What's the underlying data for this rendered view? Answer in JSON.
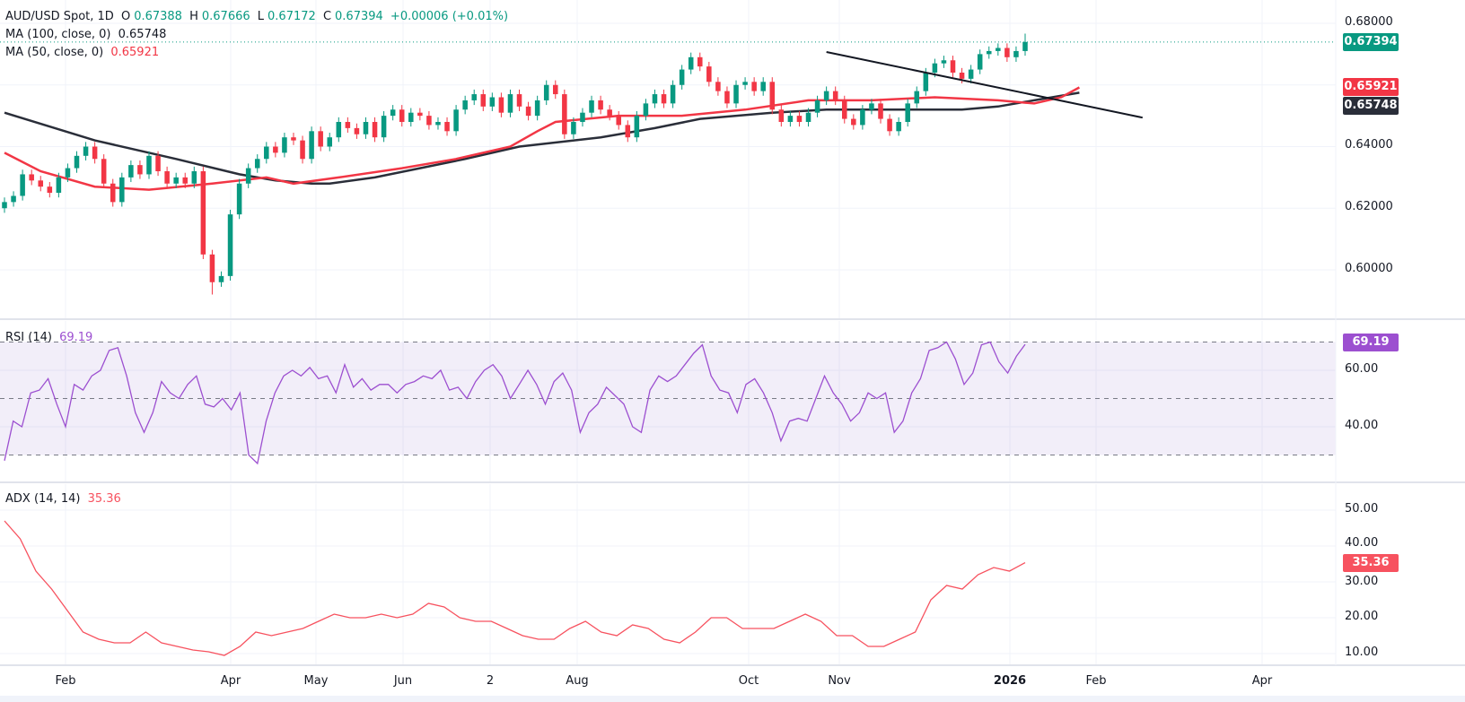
{
  "header": {
    "symbol": "AUD/USD Spot, 1D",
    "open_label": "O",
    "open": "0.67388",
    "high_label": "H",
    "high": "0.67666",
    "low_label": "L",
    "low": "0.67172",
    "close_label": "C",
    "close": "0.67394",
    "change": "+0.00006 (+0.01%)"
  },
  "indicators": {
    "ma100": {
      "label": "MA (100, close, 0)",
      "value": "0.65748",
      "color": "#2a2e39"
    },
    "ma50": {
      "label": "MA (50, close, 0)",
      "value": "0.65921",
      "color": "#f23645"
    },
    "rsi": {
      "label": "RSI (14)",
      "value": "69.19",
      "color": "#9c4fd0"
    },
    "adx": {
      "label": "ADX (14, 14)",
      "value": "35.36",
      "color": "#f7525f"
    }
  },
  "colors": {
    "up": "#089981",
    "down": "#f23645",
    "grid": "#f0f3fa",
    "rsi_band": "#7e57c2"
  },
  "price_axis": {
    "ticks": [
      "0.68000",
      "0.64000",
      "0.62000",
      "0.60000"
    ],
    "last_price": "0.67394"
  },
  "rsi_axis": {
    "ticks": [
      "60.00",
      "40.00"
    ],
    "bands": [
      70,
      50,
      30
    ]
  },
  "adx_axis": {
    "ticks": [
      "50.00",
      "40.00",
      "30.00",
      "20.00",
      "10.00"
    ]
  },
  "time_axis": {
    "labels": [
      "Feb",
      "Apr",
      "May",
      "Jun",
      "2",
      "Aug",
      "Oct",
      "Nov",
      "2026",
      "Feb",
      "Apr"
    ]
  },
  "chart_data": {
    "type": "candlestick",
    "title": "AUD/USD Spot, 1D",
    "ylim": [
      0.585,
      0.684
    ],
    "grid": true,
    "closes": [
      0.622,
      0.624,
      0.631,
      0.629,
      0.627,
      0.625,
      0.63,
      0.633,
      0.637,
      0.64,
      0.636,
      0.628,
      0.622,
      0.63,
      0.634,
      0.631,
      0.637,
      0.632,
      0.628,
      0.63,
      0.628,
      0.632,
      0.605,
      0.596,
      0.598,
      0.618,
      0.628,
      0.633,
      0.636,
      0.64,
      0.638,
      0.643,
      0.642,
      0.636,
      0.645,
      0.64,
      0.643,
      0.648,
      0.646,
      0.644,
      0.648,
      0.643,
      0.65,
      0.652,
      0.648,
      0.651,
      0.65,
      0.647,
      0.648,
      0.645,
      0.652,
      0.655,
      0.657,
      0.653,
      0.656,
      0.651,
      0.657,
      0.653,
      0.65,
      0.655,
      0.66,
      0.657,
      0.644,
      0.648,
      0.651,
      0.655,
      0.652,
      0.65,
      0.647,
      0.643,
      0.65,
      0.654,
      0.657,
      0.654,
      0.66,
      0.665,
      0.669,
      0.666,
      0.661,
      0.658,
      0.654,
      0.66,
      0.661,
      0.658,
      0.661,
      0.652,
      0.648,
      0.65,
      0.648,
      0.651,
      0.655,
      0.658,
      0.655,
      0.649,
      0.647,
      0.652,
      0.654,
      0.649,
      0.645,
      0.648,
      0.654,
      0.658,
      0.664,
      0.667,
      0.668,
      0.664,
      0.662,
      0.665,
      0.67,
      0.671,
      0.672,
      0.669,
      0.671,
      0.67394
    ],
    "extremes": {
      "low": 0.592,
      "high": 0.67666
    },
    "ma100": [
      [
        0,
        0.651
      ],
      [
        10,
        0.642
      ],
      [
        19,
        0.636
      ],
      [
        26,
        0.631
      ],
      [
        30,
        0.629
      ],
      [
        34,
        0.628
      ],
      [
        36,
        0.628
      ],
      [
        41,
        0.63
      ],
      [
        46,
        0.633
      ],
      [
        51,
        0.636
      ],
      [
        57,
        0.64
      ],
      [
        66,
        0.643
      ],
      [
        72,
        0.646
      ],
      [
        77,
        0.649
      ],
      [
        85,
        0.651
      ],
      [
        91,
        0.652
      ],
      [
        98,
        0.652
      ],
      [
        106,
        0.652
      ],
      [
        110,
        0.653
      ],
      [
        114,
        0.655
      ],
      [
        119,
        0.65748
      ]
    ],
    "ma50": [
      [
        0,
        0.638
      ],
      [
        4,
        0.632
      ],
      [
        10,
        0.627
      ],
      [
        16,
        0.626
      ],
      [
        23,
        0.628
      ],
      [
        29,
        0.63
      ],
      [
        32,
        0.628
      ],
      [
        37,
        0.63
      ],
      [
        44,
        0.633
      ],
      [
        50,
        0.636
      ],
      [
        56,
        0.64
      ],
      [
        59,
        0.645
      ],
      [
        61,
        0.648
      ],
      [
        68,
        0.65
      ],
      [
        75,
        0.65
      ],
      [
        82,
        0.652
      ],
      [
        89,
        0.655
      ],
      [
        96,
        0.655
      ],
      [
        103,
        0.656
      ],
      [
        110,
        0.655
      ],
      [
        114,
        0.654
      ],
      [
        117,
        0.656
      ],
      [
        119,
        0.65921
      ]
    ],
    "trendline": [
      [
        91,
        0.6707
      ],
      [
        126,
        0.6494
      ]
    ],
    "rsi": {
      "ylim": [
        20,
        75
      ],
      "values": [
        28,
        42,
        40,
        52,
        53,
        57,
        48,
        40,
        55,
        53,
        58,
        60,
        67,
        68,
        58,
        45,
        38,
        45,
        56,
        52,
        50,
        55,
        58,
        48,
        47,
        50,
        46,
        52,
        30,
        27,
        42,
        52,
        58,
        60,
        58,
        61,
        57,
        58,
        52,
        62,
        54,
        57,
        53,
        55,
        55,
        52,
        55,
        56,
        58,
        57,
        60,
        53,
        54,
        50,
        56,
        60,
        62,
        58,
        50,
        55,
        60,
        55,
        48,
        56,
        59,
        53,
        38,
        45,
        48,
        54,
        51,
        48,
        40,
        38,
        53,
        58,
        56,
        58,
        62,
        66,
        69,
        58,
        53,
        52,
        45,
        55,
        57,
        52,
        45,
        35,
        42,
        43,
        42,
        50,
        58,
        52,
        48,
        42,
        45,
        52,
        50,
        52,
        38,
        42,
        52,
        57,
        67,
        68,
        70,
        64,
        55,
        59,
        69,
        70,
        63,
        59,
        65,
        69.19
      ]
    },
    "adx": {
      "ylim": [
        5,
        52
      ],
      "values": [
        47,
        42,
        33,
        28,
        22,
        16,
        14,
        13,
        13,
        16,
        13,
        12,
        11,
        10.5,
        9.5,
        12,
        16,
        15,
        16,
        17,
        19,
        21,
        20,
        20,
        21,
        20,
        21,
        24,
        23,
        20,
        19,
        19,
        17,
        15,
        14,
        14,
        17,
        19,
        16,
        15,
        18,
        17,
        14,
        13,
        16,
        20,
        20,
        17,
        17,
        17,
        19,
        21,
        19,
        15,
        15,
        12,
        12,
        14,
        16,
        25,
        29,
        28,
        32,
        34,
        33,
        35.36
      ]
    }
  }
}
